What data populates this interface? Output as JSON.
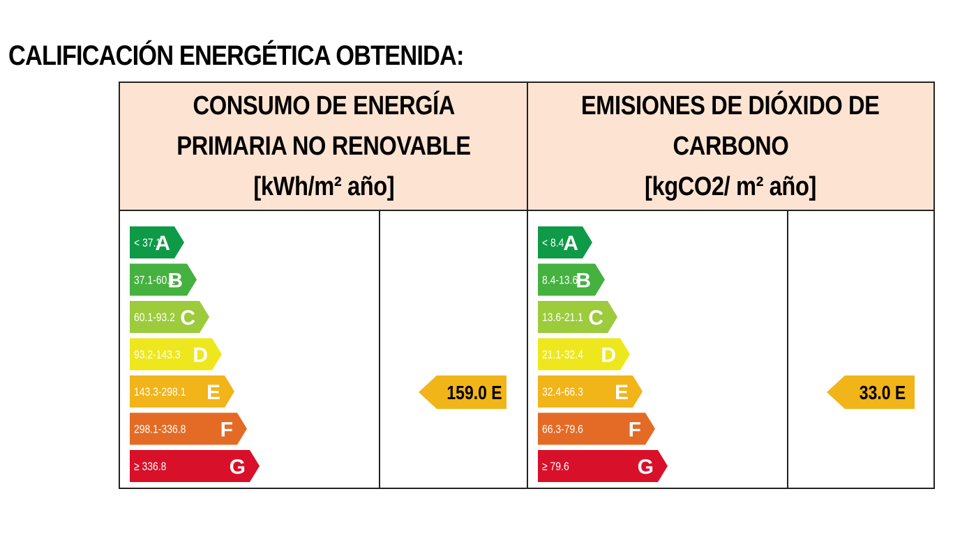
{
  "title": "CALIFICACIÓN ENERGÉTICA OBTENIDA:",
  "colors": {
    "A": "#0e9a47",
    "B": "#45b13f",
    "C": "#9ccb3b",
    "D": "#eee71d",
    "E": "#f1b419",
    "F": "#e46b25",
    "G": "#d8102a",
    "header_bg": "#fde4d2"
  },
  "panels": [
    {
      "header_lines": [
        "CONSUMO DE ENERGÍA",
        "PRIMARIA NO RENOVABLE",
        "[kWh/m² año]"
      ],
      "grades": [
        {
          "letter": "A",
          "range": "< 37.1"
        },
        {
          "letter": "B",
          "range": "37.1-60.1"
        },
        {
          "letter": "C",
          "range": "60.1-93.2"
        },
        {
          "letter": "D",
          "range": "93.2-143.3"
        },
        {
          "letter": "E",
          "range": "143.3-298.1"
        },
        {
          "letter": "F",
          "range": "298.1-336.8"
        },
        {
          "letter": "G",
          "range": "≥ 336.8"
        }
      ],
      "result": {
        "value": "159.0",
        "letter": "E",
        "label": "159.0 E"
      }
    },
    {
      "header_lines": [
        "EMISIONES DE DIÓXIDO DE",
        "CARBONO",
        "[kgCO2/ m² año]"
      ],
      "grades": [
        {
          "letter": "A",
          "range": "< 8.4"
        },
        {
          "letter": "B",
          "range": "8.4-13.6"
        },
        {
          "letter": "C",
          "range": "13.6-21.1"
        },
        {
          "letter": "D",
          "range": "21.1-32.4"
        },
        {
          "letter": "E",
          "range": "32.4-66.3"
        },
        {
          "letter": "F",
          "range": "66.3-79.6"
        },
        {
          "letter": "G",
          "range": "≥ 79.6"
        }
      ],
      "result": {
        "value": "33.0",
        "letter": "E",
        "label": "33.0 E"
      }
    }
  ]
}
